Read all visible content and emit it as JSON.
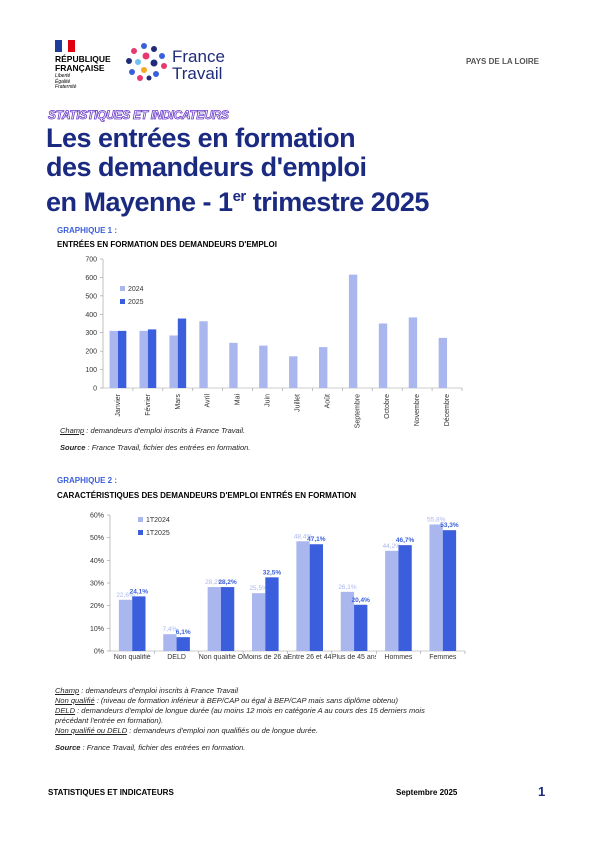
{
  "header": {
    "republic": "RÉPUBLIQUE FRANÇAISE",
    "motto": "Liberté Égalité Fraternité",
    "brand": "France Travail",
    "region": "PAYS DE LA LOIRE"
  },
  "section": "STATISTIQUES ET INDICATEURS",
  "title": {
    "line1": "Les entrées en formation",
    "line2": "des demandeurs d'emploi",
    "line3": "en Mayenne - 1",
    "sup": "er",
    "line3_end": " trimestre 2025"
  },
  "chart_data": [
    {
      "type": "bar",
      "label": "GRAPHIQUE 1 :",
      "title": "ENTRÉES EN FORMATION DES DEMANDEURS D'EMPLOI",
      "categories": [
        "Janvier",
        "Février",
        "Mars",
        "Avril",
        "Mai",
        "Juin",
        "Juillet",
        "Août",
        "Septembre",
        "Octobre",
        "Novembre",
        "Décembre"
      ],
      "series": [
        {
          "name": "2024",
          "color": "#aab6ee",
          "values": [
            310,
            310,
            285,
            362,
            245,
            230,
            172,
            222,
            615,
            350,
            383,
            272
          ]
        },
        {
          "name": "2025",
          "color": "#3b5fdc",
          "values": [
            310,
            318,
            377,
            null,
            null,
            null,
            null,
            null,
            null,
            null,
            null,
            null
          ]
        }
      ],
      "ylim": [
        0,
        700
      ],
      "yticks": [
        0,
        100,
        200,
        300,
        400,
        500,
        600,
        700
      ],
      "grid": false
    },
    {
      "type": "bar",
      "label": "GRAPHIQUE 2 :",
      "title": "CARACTÉRISTIQUES DES DEMANDEURS D'EMPLOI ENTRÉS EN FORMATION",
      "categories": [
        "Non qualifié",
        "DELD",
        "Non qualifié OU DELD",
        "Moins de 26 ans",
        "Entre 26 et 44 ans",
        "Plus de 45 ans",
        "Hommes",
        "Femmes"
      ],
      "series": [
        {
          "name": "1T2024",
          "color": "#aab6ee",
          "values": [
            22.6,
            7.4,
            28.2,
            25.5,
            48.4,
            26.1,
            44.2,
            55.8
          ],
          "value_labels": [
            "22,6%",
            "7,4%",
            "28,2%",
            "25,5%",
            "48,4%",
            "26,1%",
            "44,2%",
            "55,8%"
          ]
        },
        {
          "name": "1T2025",
          "color": "#3b5fdc",
          "values": [
            24.1,
            6.1,
            28.2,
            32.5,
            47.1,
            20.4,
            46.7,
            53.3
          ],
          "value_labels": [
            "24,1%",
            "6,1%",
            "28,2%",
            "32,5%",
            "47,1%",
            "20,4%",
            "46,7%",
            "53,3%"
          ]
        }
      ],
      "ylim": [
        0,
        60
      ],
      "yticks": [
        {
          "value": 0,
          "label": "0%"
        },
        {
          "value": 10,
          "label": "10%"
        },
        {
          "value": 20,
          "label": "20%"
        },
        {
          "value": 30,
          "label": "30%"
        },
        {
          "value": 40,
          "label": "40%"
        },
        {
          "value": 50,
          "label": "50%"
        },
        {
          "value": 60,
          "label": "60%"
        }
      ],
      "grid": false
    }
  ],
  "notes1": [
    {
      "label": "Champ",
      "text": " : demandeurs d'emploi inscrits à France Travail."
    },
    {
      "label": "Source",
      "text": " : France Travail, fichier des entrées en formation."
    }
  ],
  "notes2": [
    {
      "label": "Champ",
      "text": " : demandeurs d'emploi inscrits à France Travail"
    },
    {
      "label": "Non qualifié",
      "text": " : (niveau de formation inférieur à BEP/CAP ou égal à BEP/CAP mais sans diplôme obtenu)"
    },
    {
      "label": "DELD",
      "text": " : demandeurs d'emploi de longue durée (au moins 12 mois en catégorie A au cours des 15 derniers mois précédant l'entrée en formation)."
    },
    {
      "label": "Non qualifié ou DELD",
      "text": " : demandeurs d'emploi non qualifiés ou de longue durée."
    },
    {
      "label": "Source",
      "text": " : France Travail, fichier des entrées en formation."
    }
  ],
  "footer": {
    "left": "STATISTIQUES ET INDICATEURS",
    "date": "Septembre 2025",
    "page": "1"
  }
}
